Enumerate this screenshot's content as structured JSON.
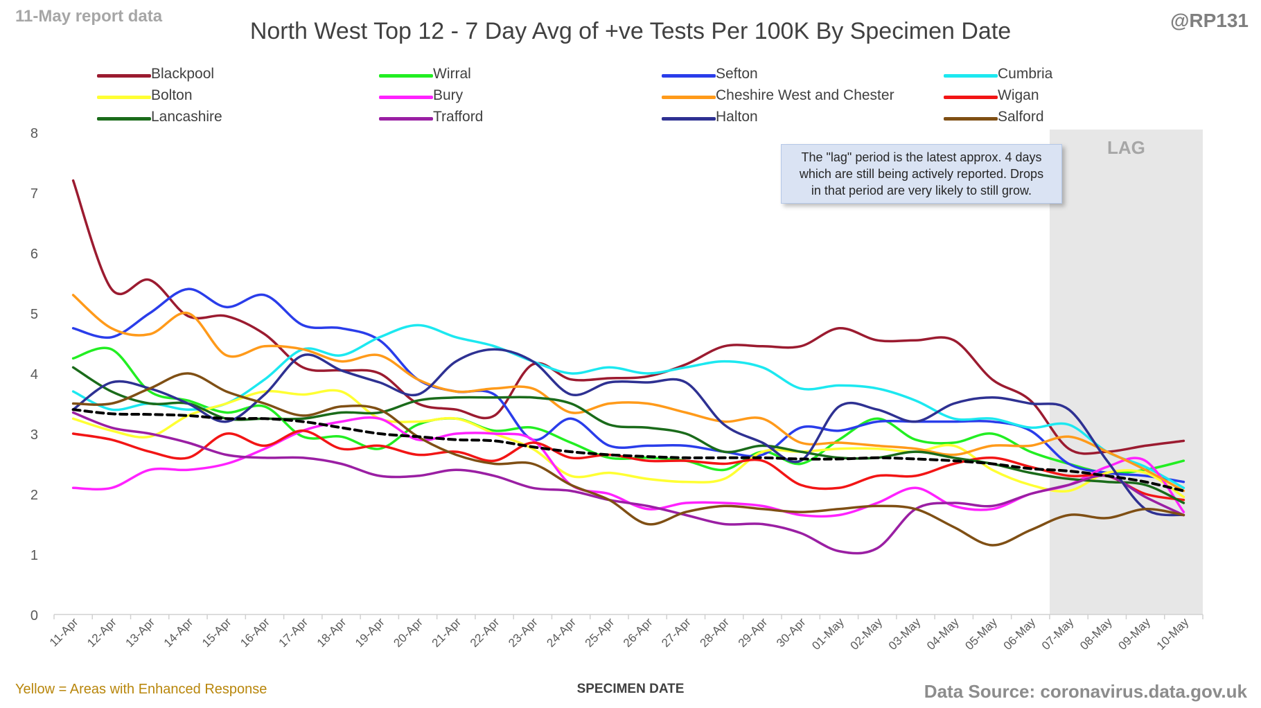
{
  "header": {
    "report_date": "11-May report data",
    "handle": "@RP131"
  },
  "footer": {
    "enhanced_note": "Yellow = Areas with Enhanced Response",
    "source": "Data Source: coronavirus.data.gov.uk"
  },
  "annotation": {
    "lag_label": "LAG",
    "lag_note_lines": [
      "The \"lag\" period is the latest approx. 4 days",
      "which are still being actively reported. Drops",
      "in that period are very likely to still grow."
    ]
  },
  "chart_data": {
    "type": "line",
    "title": "North West Top 12 - 7 Day Avg of +ve Tests Per 100K By Specimen Date",
    "xlabel": "SPECIMEN DATE",
    "ylabel": "",
    "ylim": [
      0,
      8
    ],
    "yticks": [
      "0",
      "1",
      "2",
      "3",
      "4",
      "5",
      "6",
      "7",
      "8"
    ],
    "grid": false,
    "legend_position": "top",
    "lag_period": [
      "07-May",
      "10-May"
    ],
    "categories": [
      "11-Apr",
      "12-Apr",
      "13-Apr",
      "14-Apr",
      "15-Apr",
      "16-Apr",
      "17-Apr",
      "18-Apr",
      "19-Apr",
      "20-Apr",
      "21-Apr",
      "22-Apr",
      "23-Apr",
      "24-Apr",
      "25-Apr",
      "26-Apr",
      "27-Apr",
      "28-Apr",
      "29-Apr",
      "30-Apr",
      "01-May",
      "02-May",
      "03-May",
      "04-May",
      "05-May",
      "06-May",
      "07-May",
      "08-May",
      "09-May",
      "10-May"
    ],
    "series": [
      {
        "name": "Blackpool",
        "color": "#9b1b30",
        "values": [
          7.2,
          5.4,
          5.55,
          4.95,
          4.95,
          4.65,
          4.1,
          4.05,
          4.0,
          3.5,
          3.4,
          3.3,
          4.15,
          3.9,
          3.92,
          3.95,
          4.15,
          4.45,
          4.45,
          4.45,
          4.75,
          4.55,
          4.55,
          4.55,
          3.9,
          3.55,
          2.75,
          2.7,
          2.8,
          2.88
        ]
      },
      {
        "name": "Wirral",
        "color": "#22ee22",
        "values": [
          4.25,
          4.4,
          3.7,
          3.55,
          3.35,
          3.45,
          2.95,
          2.95,
          2.75,
          3.15,
          3.25,
          3.05,
          3.1,
          2.85,
          2.6,
          2.6,
          2.55,
          2.4,
          2.7,
          2.5,
          2.9,
          3.25,
          2.9,
          2.85,
          3.0,
          2.7,
          2.5,
          2.35,
          2.4,
          2.55
        ]
      },
      {
        "name": "Sefton",
        "color": "#2a3dea",
        "values": [
          4.75,
          4.6,
          5.0,
          5.4,
          5.1,
          5.3,
          4.8,
          4.75,
          4.55,
          3.9,
          3.7,
          3.65,
          2.9,
          3.25,
          2.8,
          2.8,
          2.8,
          2.7,
          2.65,
          3.1,
          3.05,
          3.2,
          3.2,
          3.2,
          3.2,
          3.05,
          2.5,
          2.35,
          2.3,
          2.2
        ]
      },
      {
        "name": "Cumbria",
        "color": "#1ce8f0",
        "values": [
          3.7,
          3.4,
          3.5,
          3.4,
          3.5,
          3.9,
          4.4,
          4.3,
          4.6,
          4.8,
          4.6,
          4.45,
          4.2,
          4.0,
          4.1,
          4.0,
          4.1,
          4.2,
          4.1,
          3.75,
          3.8,
          3.75,
          3.55,
          3.25,
          3.25,
          3.1,
          3.15,
          2.7,
          2.45,
          2.1
        ]
      },
      {
        "name": "Bolton",
        "color": "#ffff33",
        "values": [
          3.25,
          3.05,
          2.95,
          3.3,
          3.5,
          3.7,
          3.65,
          3.7,
          3.25,
          3.2,
          3.25,
          3.0,
          2.75,
          2.3,
          2.35,
          2.25,
          2.2,
          2.25,
          2.7,
          2.7,
          2.75,
          2.75,
          2.7,
          2.8,
          2.4,
          2.15,
          2.05,
          2.35,
          2.35,
          1.95
        ]
      },
      {
        "name": "Bury",
        "color": "#ff22ff",
        "values": [
          2.1,
          2.1,
          2.4,
          2.4,
          2.5,
          2.75,
          3.05,
          3.2,
          3.25,
          2.9,
          3.0,
          3.0,
          2.9,
          2.15,
          2.0,
          1.75,
          1.85,
          1.85,
          1.8,
          1.65,
          1.65,
          1.85,
          2.1,
          1.8,
          1.75,
          2.0,
          2.15,
          2.45,
          2.55,
          1.7
        ]
      },
      {
        "name": "Cheshire West and Chester",
        "color": "#ff9a1a",
        "values": [
          5.3,
          4.75,
          4.65,
          5.0,
          4.3,
          4.45,
          4.4,
          4.2,
          4.3,
          3.9,
          3.7,
          3.75,
          3.75,
          3.35,
          3.5,
          3.5,
          3.35,
          3.2,
          3.25,
          2.85,
          2.85,
          2.8,
          2.75,
          2.65,
          2.8,
          2.8,
          2.95,
          2.7,
          2.4,
          2.05
        ]
      },
      {
        "name": "Wigan",
        "color": "#f21515",
        "values": [
          3.0,
          2.9,
          2.7,
          2.6,
          3.0,
          2.8,
          3.05,
          2.75,
          2.8,
          2.65,
          2.7,
          2.55,
          2.85,
          2.6,
          2.65,
          2.55,
          2.55,
          2.5,
          2.55,
          2.15,
          2.1,
          2.3,
          2.3,
          2.5,
          2.6,
          2.45,
          2.3,
          2.3,
          2.0,
          1.9
        ]
      },
      {
        "name": "Lancashire",
        "color": "#1a6b1a",
        "values": [
          4.1,
          3.7,
          3.5,
          3.5,
          3.25,
          3.25,
          3.25,
          3.35,
          3.35,
          3.55,
          3.6,
          3.6,
          3.6,
          3.5,
          3.15,
          3.1,
          3.0,
          2.7,
          2.8,
          2.7,
          2.6,
          2.6,
          2.7,
          2.6,
          2.5,
          2.35,
          2.25,
          2.2,
          2.15,
          1.85
        ]
      },
      {
        "name": "Trafford",
        "color": "#9a1fa3",
        "values": [
          3.35,
          3.1,
          3.0,
          2.85,
          2.65,
          2.6,
          2.6,
          2.5,
          2.3,
          2.3,
          2.4,
          2.3,
          2.1,
          2.05,
          1.9,
          1.8,
          1.65,
          1.5,
          1.5,
          1.35,
          1.05,
          1.1,
          1.75,
          1.85,
          1.8,
          2.0,
          2.15,
          2.3,
          1.95,
          1.65
        ]
      },
      {
        "name": "Halton",
        "color": "#2e3192",
        "values": [
          3.4,
          3.85,
          3.75,
          3.5,
          3.2,
          3.65,
          4.3,
          4.05,
          3.85,
          3.65,
          4.2,
          4.4,
          4.2,
          3.65,
          3.85,
          3.85,
          3.85,
          3.15,
          2.85,
          2.55,
          3.45,
          3.4,
          3.2,
          3.5,
          3.6,
          3.5,
          3.4,
          2.55,
          1.75,
          1.65
        ]
      },
      {
        "name": "Salford",
        "color": "#7f4f14",
        "values": [
          3.5,
          3.5,
          3.75,
          4.0,
          3.7,
          3.5,
          3.3,
          3.45,
          3.4,
          2.95,
          2.65,
          2.5,
          2.5,
          2.15,
          1.9,
          1.5,
          1.7,
          1.8,
          1.75,
          1.7,
          1.75,
          1.8,
          1.75,
          1.45,
          1.15,
          1.4,
          1.65,
          1.6,
          1.75,
          1.65
        ]
      },
      {
        "name": "",
        "color": "#000000",
        "dashed": true,
        "values": [
          3.4,
          3.33,
          3.32,
          3.3,
          3.25,
          3.25,
          3.2,
          3.1,
          3.0,
          2.95,
          2.9,
          2.88,
          2.78,
          2.7,
          2.65,
          2.62,
          2.6,
          2.6,
          2.6,
          2.58,
          2.58,
          2.6,
          2.58,
          2.55,
          2.5,
          2.42,
          2.38,
          2.3,
          2.2,
          2.05
        ]
      }
    ]
  }
}
